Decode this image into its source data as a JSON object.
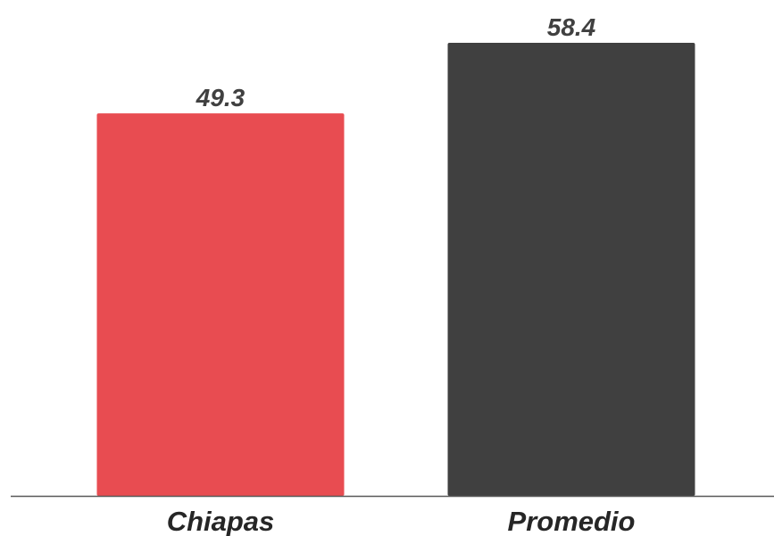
{
  "chart_data": {
    "type": "bar",
    "categories": [
      "Chiapas",
      "Promedio"
    ],
    "values": [
      49.3,
      58.4
    ],
    "data_labels": [
      "49.3",
      "58.4"
    ],
    "colors": [
      "#e84c51",
      "#404040"
    ],
    "axis_color": "#595959",
    "title": "",
    "xlabel": "",
    "ylabel": "",
    "ylim": [
      0,
      58.4
    ],
    "grid": false,
    "legend": "none"
  }
}
